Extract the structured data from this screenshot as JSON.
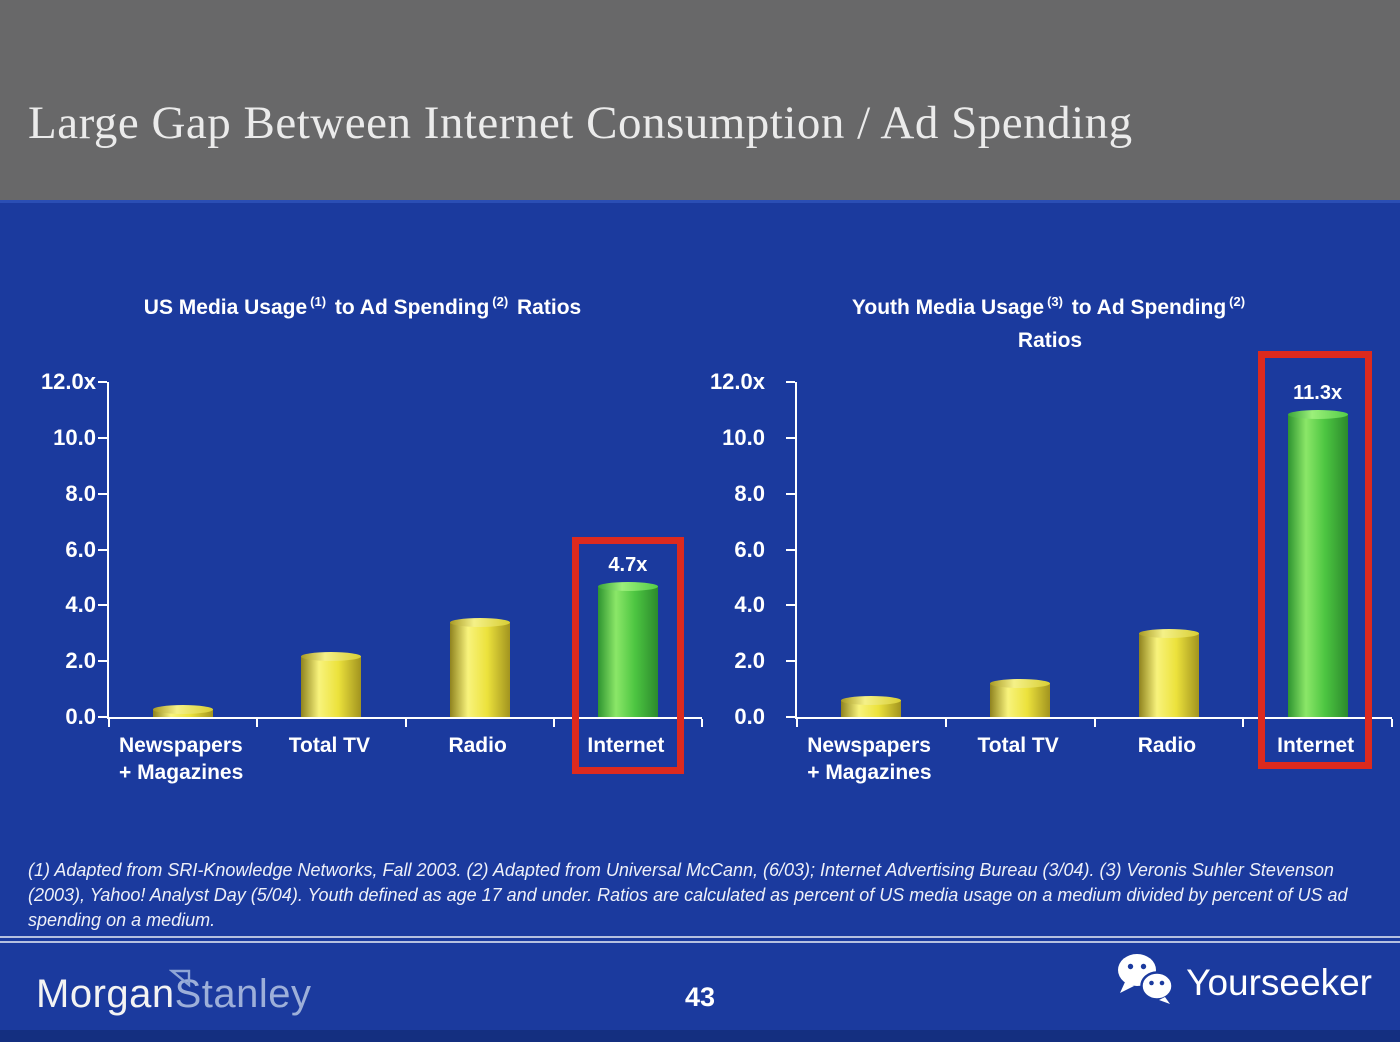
{
  "slide": {
    "title": "Large Gap Between Internet Consumption / Ad Spending",
    "footnote": "(1) Adapted from SRI-Knowledge Networks, Fall 2003.  (2) Adapted from Universal McCann, (6/03); Internet Advertising Bureau (3/04). (3) Veronis Suhler Stevenson (2003), Yahoo! Analyst Day (5/04).  Youth defined as age 17 and under.  Ratios are calculated as percent of US media usage on a medium divided by percent of US ad spending on a medium."
  },
  "footer": {
    "logo_morgan": "Morgan",
    "logo_stanley": "Stanley",
    "page_number": "43",
    "watermark": "Yourseeker"
  },
  "colors": {
    "background_blue": "#1b3a9e",
    "header_gray": "#686869",
    "bottom_strip_blue": "#142f80",
    "bar_yellow": "#ece23c",
    "bar_green": "#4cc541",
    "highlight_red": "#dd2a1e",
    "text_white": "#ffffff",
    "logo_stanley_blue": "#9dafd9"
  },
  "chart_data": [
    {
      "type": "bar",
      "title": "US Media Usage (1) to Ad Spending (2) Ratios",
      "title_parts": {
        "t1": "US Media Usage",
        "sup1": "(1)",
        "t2": "to Ad Spending",
        "sup2": "(2)",
        "tail": "Ratios"
      },
      "title_line2": "",
      "categories": [
        "Newspapers\n+ Magazines",
        "Total TV",
        "Radio",
        "Internet"
      ],
      "values": [
        0.3,
        2.2,
        3.4,
        4.7
      ],
      "bar_colors": [
        "yellow",
        "yellow",
        "yellow",
        "green"
      ],
      "data_labels": [
        "",
        "",
        "",
        "4.7x"
      ],
      "highlighted_category": "Internet",
      "y_ticks": [
        "12.0x",
        "10.0",
        "8.0",
        "6.0",
        "4.0",
        "2.0",
        "0.0"
      ],
      "ylim": [
        0,
        12
      ],
      "xlabel": "",
      "ylabel": "",
      "grid": "off",
      "legend": "none"
    },
    {
      "type": "bar",
      "title": "Youth Media Usage (3) to Ad Spending (2) Ratios",
      "title_parts": {
        "t1": "Youth Media Usage",
        "sup1": "(3)",
        "t2": "to Ad Spending",
        "sup2": "(2)",
        "tail": ""
      },
      "title_line2": "Ratios",
      "categories": [
        "Newspapers\n+ Magazines",
        "Total TV",
        "Radio",
        "Internet"
      ],
      "values": [
        0.6,
        1.2,
        3.0,
        11.3
      ],
      "bar_colors": [
        "yellow",
        "yellow",
        "yellow",
        "green"
      ],
      "data_labels": [
        "",
        "",
        "",
        "11.3x"
      ],
      "highlighted_category": "Internet",
      "y_ticks": [
        "12.0x",
        "10.0",
        "8.0",
        "6.0",
        "4.0",
        "2.0",
        "0.0"
      ],
      "ylim": [
        0,
        12
      ],
      "xlabel": "",
      "ylabel": "",
      "grid": "off",
      "legend": "none"
    }
  ]
}
